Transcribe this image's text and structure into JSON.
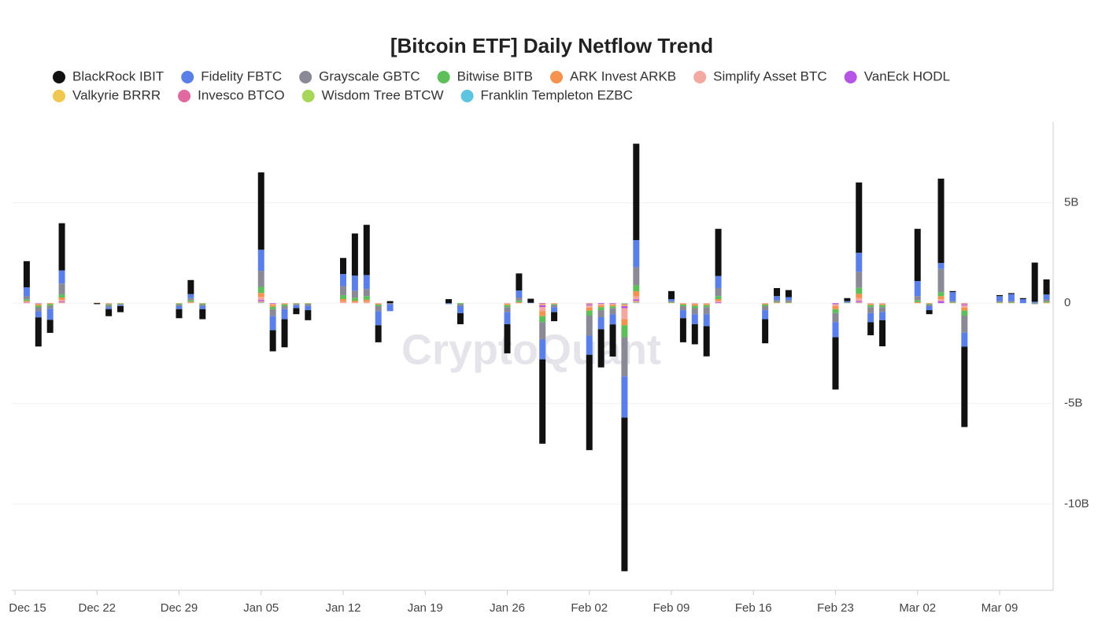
{
  "chart_data": {
    "type": "stacked_bar",
    "title": "[Bitcoin ETF] Daily Netflow Trend",
    "watermark": "CryptoQuant",
    "x": [
      "Dec 16",
      "Dec 17",
      "Dec 18",
      "Dec 19",
      "Dec 22",
      "Dec 23",
      "Dec 24",
      "Dec 29",
      "Dec 30",
      "Dec 31",
      "Jan 05",
      "Jan 06",
      "Jan 07",
      "Jan 08",
      "Jan 09",
      "Jan 12",
      "Jan 13",
      "Jan 14",
      "Jan 15",
      "Jan 16",
      "Jan 21",
      "Jan 22",
      "Jan 26",
      "Jan 27",
      "Jan 28",
      "Jan 29",
      "Jan 30",
      "Feb 02",
      "Feb 03",
      "Feb 04",
      "Feb 05",
      "Feb 06",
      "Feb 09",
      "Feb 10",
      "Feb 11",
      "Feb 12",
      "Feb 13",
      "Feb 17",
      "Feb 18",
      "Feb 19",
      "Feb 23",
      "Feb 24",
      "Feb 25",
      "Feb 26",
      "Feb 27",
      "Mar 02",
      "Mar 03",
      "Mar 04",
      "Mar 05",
      "Mar 06",
      "Mar 09",
      "Mar 10",
      "Mar 11",
      "Mar 12",
      "Mar 13"
    ],
    "xticks": [
      "Dec 15",
      "Dec 22",
      "Dec 29",
      "Jan 05",
      "Jan 12",
      "Jan 19",
      "Jan 26",
      "Feb 02",
      "Feb 09",
      "Feb 16",
      "Feb 23",
      "Mar 02",
      "Mar 09"
    ],
    "ylim": [
      -14.3,
      9.02
    ],
    "yticks": [
      {
        "value": 5,
        "label": "5B"
      },
      0,
      {
        "value": -5,
        "label": "-5B"
      },
      {
        "value": -10,
        "label": "-10B"
      }
    ],
    "grid": true,
    "series": [
      {
        "name": "BlackRock IBIT",
        "color": "#111111",
        "values": [
          1.3,
          -1.45,
          -0.65,
          2.35,
          -0.05,
          -0.35,
          -0.3,
          -0.45,
          0.7,
          -0.5,
          3.85,
          -1.05,
          -1.4,
          -0.3,
          -0.5,
          0.8,
          2.1,
          2.5,
          -0.85,
          0.1,
          0.2,
          -0.55,
          -1.45,
          0.85,
          0.2,
          -4.2,
          -0.45,
          -4.75,
          -1.9,
          -1.6,
          -7.65,
          4.8,
          0.4,
          -1.2,
          -1.0,
          -1.5,
          2.35,
          -1.2,
          0.4,
          0.35,
          -2.6,
          0.15,
          3.5,
          -0.65,
          -1.3,
          2.6,
          -0.2,
          4.2,
          0.05,
          -4.0,
          0.05,
          0.05,
          0.05,
          1.95,
          0.75
        ]
      },
      {
        "name": "Fidelity FBTC",
        "color": "#5b7fe8",
        "values": [
          0.45,
          -0.3,
          -0.55,
          0.65,
          0,
          -0.1,
          -0.05,
          -0.15,
          0.2,
          -0.15,
          1.05,
          -0.7,
          -0.5,
          -0.15,
          -0.2,
          0.6,
          0.75,
          0.7,
          -0.7,
          -0.35,
          -0.05,
          -0.35,
          -0.6,
          0.35,
          0.02,
          -1.0,
          -0.25,
          -0.95,
          -0.6,
          -0.5,
          -2.05,
          1.35,
          0.1,
          -0.4,
          -0.5,
          -0.6,
          0.6,
          -0.45,
          0.2,
          0.15,
          -0.75,
          0.05,
          0.95,
          -0.45,
          -0.4,
          0.75,
          -0.2,
          0.3,
          0.45,
          -0.7,
          0.25,
          0.35,
          0.2,
          0.05,
          0.25
        ]
      },
      {
        "name": "Grayscale GBTC",
        "color": "#8a8a96",
        "values": [
          0.15,
          -0.2,
          -0.15,
          0.55,
          0,
          -0.1,
          -0.05,
          -0.08,
          0.1,
          -0.08,
          0.8,
          -0.35,
          -0.15,
          -0.05,
          -0.1,
          0.45,
          0.35,
          0.35,
          -0.25,
          -0.05,
          0,
          -0.1,
          -0.25,
          0.15,
          0,
          -0.85,
          -0.1,
          -1.0,
          -0.35,
          -0.3,
          -1.95,
          0.9,
          0.05,
          -0.2,
          -0.3,
          -0.35,
          0.4,
          -0.2,
          0.08,
          0.1,
          -0.45,
          0.03,
          0.8,
          -0.3,
          -0.25,
          0.2,
          -0.08,
          1.15,
          0.05,
          -0.85,
          0.05,
          0.05,
          0,
          -0.05,
          0.1
        ]
      },
      {
        "name": "Bitwise BITB",
        "color": "#5cbf5a",
        "values": [
          0.08,
          -0.08,
          -0.08,
          0.15,
          0,
          -0.05,
          -0.03,
          -0.05,
          0.08,
          -0.05,
          0.3,
          -0.12,
          -0.08,
          -0.03,
          -0.03,
          0.2,
          0.15,
          0.18,
          -0.08,
          0,
          0,
          -0.05,
          -0.1,
          0.08,
          0,
          -0.3,
          -0.05,
          -0.25,
          -0.15,
          -0.1,
          -0.6,
          0.3,
          0.03,
          -0.08,
          -0.12,
          -0.1,
          0.15,
          -0.08,
          0.04,
          0.03,
          -0.2,
          0.02,
          0.3,
          -0.1,
          -0.1,
          0.1,
          -0.04,
          0.2,
          0.03,
          -0.25,
          0.03,
          0.03,
          0,
          0.02,
          0.05
        ]
      },
      {
        "name": "ARK Invest ARKB",
        "color": "#f5924e",
        "values": [
          0.05,
          -0.08,
          -0.05,
          0.12,
          0.02,
          -0.03,
          -0.02,
          -0.02,
          0.05,
          -0.02,
          0.2,
          -0.1,
          -0.05,
          -0.02,
          -0.02,
          0.12,
          0.08,
          0.1,
          -0.05,
          0,
          0,
          0,
          -0.06,
          0.05,
          0,
          -0.25,
          -0.03,
          -0.15,
          -0.1,
          -0.08,
          -0.3,
          0.25,
          0.02,
          -0.05,
          -0.08,
          -0.06,
          0.1,
          -0.05,
          0.03,
          0.02,
          -0.15,
          0,
          0.2,
          -0.06,
          -0.06,
          0.05,
          -0.03,
          0.15,
          0.02,
          -0.15,
          0.02,
          0.02,
          0,
          0,
          0.03
        ]
      },
      {
        "name": "Simplify Asset BTC",
        "color": "#f3a8a0",
        "values": [
          0.04,
          -0.03,
          0,
          0.08,
          0,
          -0.02,
          0,
          0,
          0.02,
          0,
          0.15,
          -0.05,
          -0.02,
          0,
          0,
          0.08,
          0.04,
          0.07,
          -0.02,
          0,
          0,
          0,
          -0.04,
          0,
          0,
          -0.2,
          -0.02,
          -0.1,
          -0.06,
          -0.05,
          -0.55,
          0.15,
          0,
          -0.02,
          -0.05,
          -0.04,
          0.06,
          -0.02,
          0,
          0,
          -0.1,
          0,
          0.15,
          -0.04,
          -0.04,
          0,
          0,
          0.1,
          0,
          -0.1,
          0,
          0,
          0,
          0,
          0
        ]
      },
      {
        "name": "VanEck HODL",
        "color": "#b455e6",
        "values": [
          0.02,
          -0.02,
          0,
          0.04,
          0,
          0,
          0,
          0,
          0,
          0,
          0.06,
          -0.03,
          0,
          0,
          0,
          0,
          0,
          0,
          0,
          0,
          0,
          0,
          0,
          0,
          0,
          -0.1,
          0,
          -0.06,
          -0.04,
          -0.03,
          -0.1,
          0.08,
          0,
          0,
          0,
          0,
          0.04,
          0,
          0,
          0,
          -0.05,
          0,
          0.06,
          0,
          0,
          0,
          0,
          0.1,
          0,
          -0.06,
          0,
          0,
          0,
          0,
          0
        ]
      },
      {
        "name": "Valkyrie BRRR",
        "color": "#f0c850",
        "values": [
          0,
          0,
          0,
          0.02,
          0,
          0,
          0,
          0,
          0,
          0,
          0.03,
          0,
          0,
          0,
          0,
          0,
          0,
          0,
          0,
          0,
          0,
          0,
          0,
          0,
          0,
          -0.05,
          0,
          -0.03,
          0,
          0,
          -0.05,
          0.04,
          0,
          0,
          0,
          0,
          0,
          0,
          0,
          0,
          0,
          0,
          0.02,
          0,
          0,
          0,
          0,
          0,
          0,
          -0.03,
          0,
          0,
          0,
          0,
          0
        ]
      },
      {
        "name": "Invesco BTCO",
        "color": "#e06aa0",
        "values": [
          0,
          0,
          0,
          0.02,
          0,
          0,
          0,
          0,
          0,
          0,
          0.03,
          0,
          0,
          0,
          0,
          0,
          0,
          0,
          0,
          0,
          0,
          0,
          0,
          0,
          0,
          -0.05,
          0,
          -0.03,
          0,
          0,
          -0.05,
          0.03,
          0,
          0,
          0,
          0,
          0,
          0,
          0,
          0,
          0,
          0,
          0.02,
          0,
          0,
          0,
          0,
          0,
          0,
          -0.03,
          0,
          0,
          0,
          0,
          0
        ]
      },
      {
        "name": "Wisdom Tree BTCW",
        "color": "#a8d65a",
        "values": [
          0,
          0,
          0,
          0,
          0,
          0,
          0,
          0,
          0,
          0,
          0.02,
          0,
          0,
          0,
          0,
          0,
          0,
          0,
          0,
          0,
          0,
          0,
          0,
          0,
          0,
          0,
          0,
          0,
          0,
          0,
          -0.03,
          0.02,
          0,
          0,
          0,
          0,
          0,
          0,
          0,
          0,
          0,
          0,
          0,
          0,
          0,
          0,
          0,
          0,
          0,
          0,
          0,
          0,
          0,
          0,
          0
        ]
      },
      {
        "name": "Franklin Templeton EZBC",
        "color": "#5ec4e0",
        "values": [
          0,
          0,
          0,
          0,
          0,
          0,
          0,
          0,
          0,
          0,
          0.02,
          0,
          0,
          0,
          0,
          0,
          0,
          0,
          0,
          0,
          0,
          0,
          0,
          0,
          0,
          0,
          0,
          0,
          0,
          0,
          -0.02,
          0.02,
          0,
          0,
          0,
          0,
          0,
          0,
          0,
          0,
          0,
          0,
          0.01,
          0,
          0,
          0,
          0,
          0,
          0,
          0,
          0,
          0,
          0,
          0,
          0
        ]
      }
    ]
  }
}
